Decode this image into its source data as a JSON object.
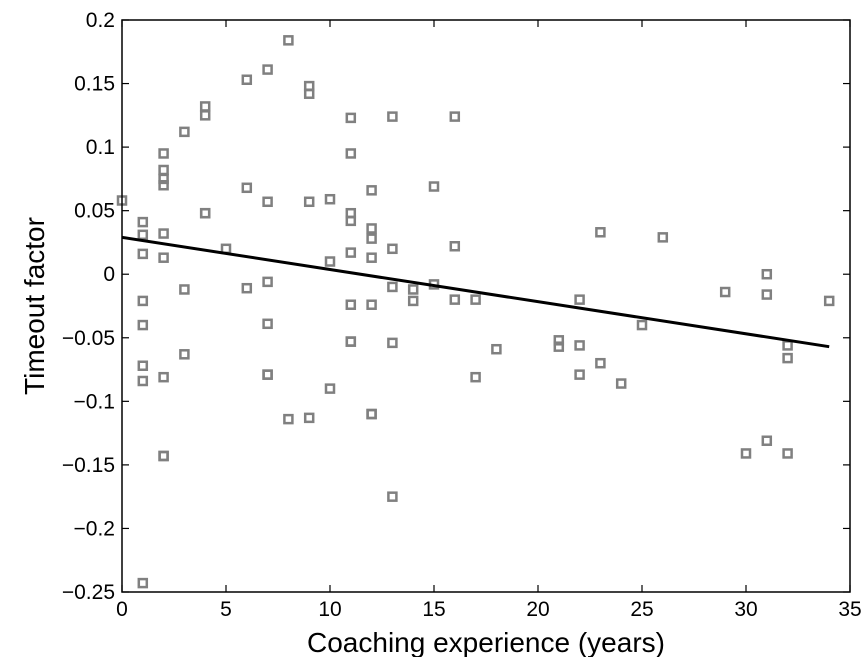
{
  "chart_data": {
    "type": "scatter",
    "title": "",
    "xlabel": "Coaching experience (years)",
    "ylabel": "Timeout factor",
    "xlim": [
      0,
      35
    ],
    "ylim": [
      -0.25,
      0.2
    ],
    "xticks": [
      0,
      5,
      10,
      15,
      20,
      25,
      30,
      35
    ],
    "yticks": [
      -0.25,
      -0.2,
      -0.15,
      -0.1,
      -0.05,
      0,
      0.05,
      0.1,
      0.15,
      0.2
    ],
    "xtick_labels": [
      "0",
      "5",
      "10",
      "15",
      "20",
      "25",
      "30",
      "35"
    ],
    "ytick_labels": [
      "−0.25",
      "−0.2",
      "−0.15",
      "−0.1",
      "−0.05",
      "0",
      "0.05",
      "0.1",
      "0.15",
      "0.2"
    ],
    "grid": false,
    "legend": "none",
    "marker_color": "#808080",
    "line_color": "#000000",
    "series": [
      {
        "kind": "points",
        "x": [
          0,
          1,
          1,
          1,
          1,
          1,
          1,
          1,
          1,
          2,
          2,
          2,
          2,
          2,
          2,
          2,
          2,
          2,
          3,
          3,
          3,
          4,
          4,
          4,
          4,
          5,
          6,
          6,
          6,
          7,
          7,
          7,
          7,
          7,
          7,
          8,
          8,
          9,
          9,
          9,
          9,
          10,
          10,
          10,
          11,
          11,
          11,
          11,
          11,
          11,
          11,
          11,
          12,
          12,
          12,
          12,
          12,
          12,
          12,
          13,
          13,
          13,
          13,
          13,
          14,
          14,
          15,
          15,
          16,
          16,
          16,
          17,
          17,
          18,
          21,
          21,
          22,
          22,
          22,
          23,
          23,
          24,
          25,
          26,
          29,
          30,
          31,
          31,
          31,
          32,
          32,
          32,
          34
        ],
        "y": [
          0.058,
          0.041,
          0.031,
          0.016,
          -0.021,
          -0.04,
          -0.072,
          -0.084,
          -0.243,
          0.095,
          0.082,
          0.075,
          0.07,
          0.032,
          0.013,
          -0.081,
          -0.143,
          -0.143,
          0.112,
          -0.012,
          -0.063,
          0.132,
          0.125,
          0.048,
          0.048,
          0.02,
          0.153,
          0.068,
          -0.011,
          0.161,
          0.057,
          -0.006,
          -0.039,
          -0.079,
          -0.079,
          0.184,
          -0.114,
          0.148,
          0.142,
          0.057,
          -0.113,
          0.059,
          0.01,
          -0.09,
          0.123,
          0.095,
          0.048,
          0.042,
          0.017,
          -0.024,
          -0.053,
          -0.053,
          0.066,
          0.036,
          0.028,
          0.013,
          -0.024,
          -0.11,
          -0.11,
          0.124,
          0.02,
          -0.01,
          -0.054,
          -0.175,
          -0.012,
          -0.021,
          0.069,
          -0.008,
          0.124,
          0.022,
          -0.02,
          -0.02,
          -0.081,
          -0.059,
          -0.052,
          -0.057,
          -0.02,
          -0.056,
          -0.079,
          0.033,
          -0.07,
          -0.086,
          -0.04,
          0.029,
          -0.014,
          -0.141,
          0.0,
          -0.016,
          -0.131,
          -0.056,
          -0.066,
          -0.141,
          -0.021
        ]
      },
      {
        "kind": "fit-line",
        "x": [
          0,
          34
        ],
        "y": [
          0.029,
          -0.057
        ]
      }
    ]
  }
}
